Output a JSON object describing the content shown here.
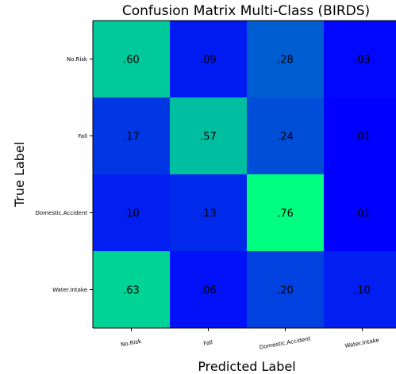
{
  "chart_data": {
    "type": "heatmap",
    "title": "Confusion Matrix Multi-Class (BIRDS)",
    "xlabel": "Predicted Label",
    "ylabel": "True Label",
    "x_categories": [
      "No.Risk",
      "Fall",
      "Domestic.Accident",
      "Water.Intake"
    ],
    "y_categories": [
      "No.Risk",
      "Fall",
      "Domestic.Accident",
      "Water.Intake"
    ],
    "values": [
      [
        0.6,
        0.09,
        0.28,
        0.03
      ],
      [
        0.17,
        0.57,
        0.24,
        0.01
      ],
      [
        0.1,
        0.13,
        0.76,
        0.01
      ],
      [
        0.63,
        0.06,
        0.2,
        0.1
      ]
    ],
    "cell_labels": [
      [
        ".60",
        ".09",
        ".28",
        ".03"
      ],
      [
        ".17",
        ".57",
        ".24",
        ".01"
      ],
      [
        ".10",
        ".13",
        ".76",
        ".01"
      ],
      [
        ".63",
        ".06",
        ".20",
        ".10"
      ]
    ],
    "colormap": "winter",
    "color_min": "#0000ff",
    "color_max": "#00ff80"
  }
}
